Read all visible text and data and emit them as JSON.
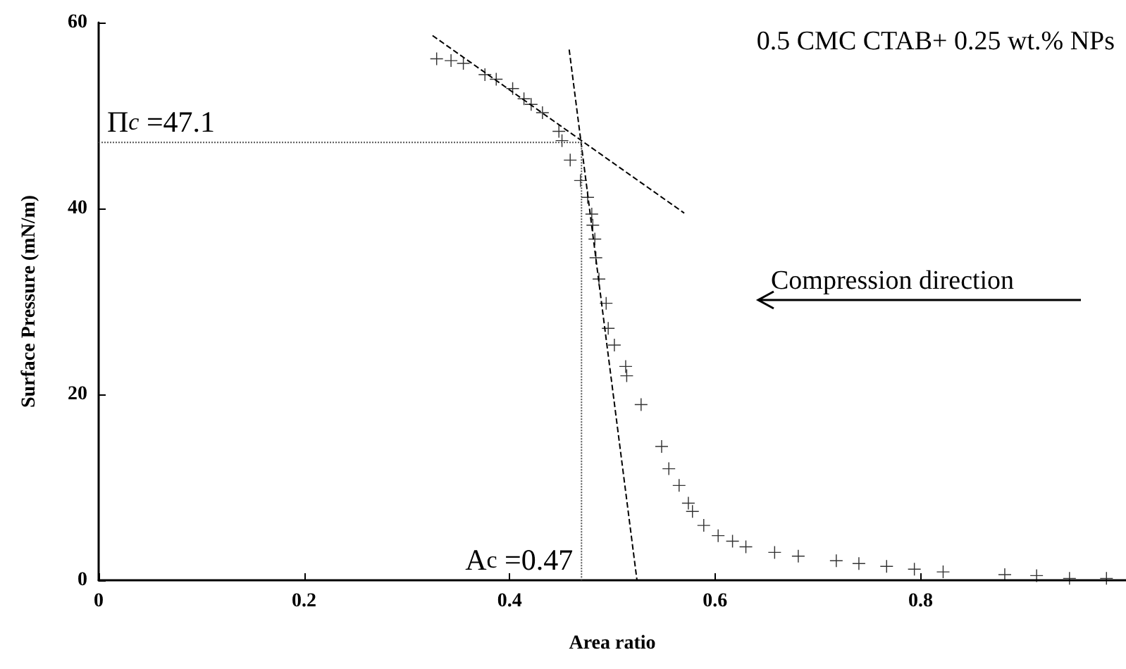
{
  "chart_data": {
    "type": "scatter",
    "xlabel": "Area ratio",
    "ylabel": "Surface Pressure (mN/m)",
    "grid": false,
    "xlim": [
      0,
      1
    ],
    "xticks": [
      0,
      0.2,
      0.4,
      0.6,
      0.8
    ],
    "ylim": [
      0,
      60
    ],
    "yticks": [
      0,
      20,
      40,
      60
    ],
    "annotations": [
      "0.5 CMC CTAB+ 0.25 wt.% NPs",
      "Compression direction",
      {
        "text": "Π$_{c}$ =47.1",
        "x": 0,
        "y": 47.1
      },
      {
        "text": "A$_{c}$ =0.47",
        "x": 0.47,
        "y": 0
      }
    ],
    "series": [
      {
        "marker": "cross",
        "color": "#000000",
        "x": [
          0.329,
          0.343,
          0.355,
          0.376,
          0.387,
          0.403,
          0.414,
          0.421,
          0.432,
          0.448,
          0.451,
          0.459,
          0.469,
          0.476,
          0.48,
          0.481,
          0.483,
          0.484,
          0.487,
          0.494,
          0.496,
          0.502,
          0.513,
          0.514,
          0.528,
          0.548,
          0.555,
          0.565,
          0.574,
          0.578,
          0.589,
          0.603,
          0.617,
          0.63,
          0.658,
          0.681,
          0.718,
          0.74,
          0.767,
          0.794,
          0.822,
          0.882,
          0.913,
          0.945,
          0.981
        ],
        "values": [
          56.1,
          55.9,
          55.6,
          54.4,
          53.9,
          52.9,
          51.8,
          51.2,
          50.3,
          48.3,
          47.3,
          45.2,
          43.0,
          41.2,
          39.4,
          38.2,
          36.7,
          34.7,
          32.4,
          29.8,
          27.1,
          25.3,
          23.0,
          22.0,
          18.9,
          14.4,
          12.0,
          10.2,
          8.3,
          7.4,
          5.9,
          4.8,
          4.2,
          3.6,
          3.0,
          2.6,
          2.1,
          1.8,
          1.5,
          1.2,
          0.9,
          0.6,
          0.5,
          0.2,
          0.2
        ]
      },
      {
        "type": "line",
        "marker": "none",
        "color": "#000000",
        "line_style": "dashed",
        "x": [
          0.325,
          0.57
        ],
        "values": [
          58.6,
          39.5
        ]
      },
      {
        "type": "line",
        "marker": "none",
        "color": "#000000",
        "line_style": "dashed",
        "x": [
          0.458,
          0.524
        ],
        "values": [
          57.1,
          0
        ]
      },
      {
        "type": "line",
        "marker": "none",
        "color": "#555555",
        "line_style": "dotted",
        "x": [
          0,
          0.47
        ],
        "values": [
          47.1,
          47.1
        ]
      },
      {
        "type": "line",
        "marker": "none",
        "color": "#555555",
        "line_style": "dotted",
        "x": [
          0.47,
          0.47
        ],
        "values": [
          47.1,
          0
        ]
      }
    ]
  }
}
